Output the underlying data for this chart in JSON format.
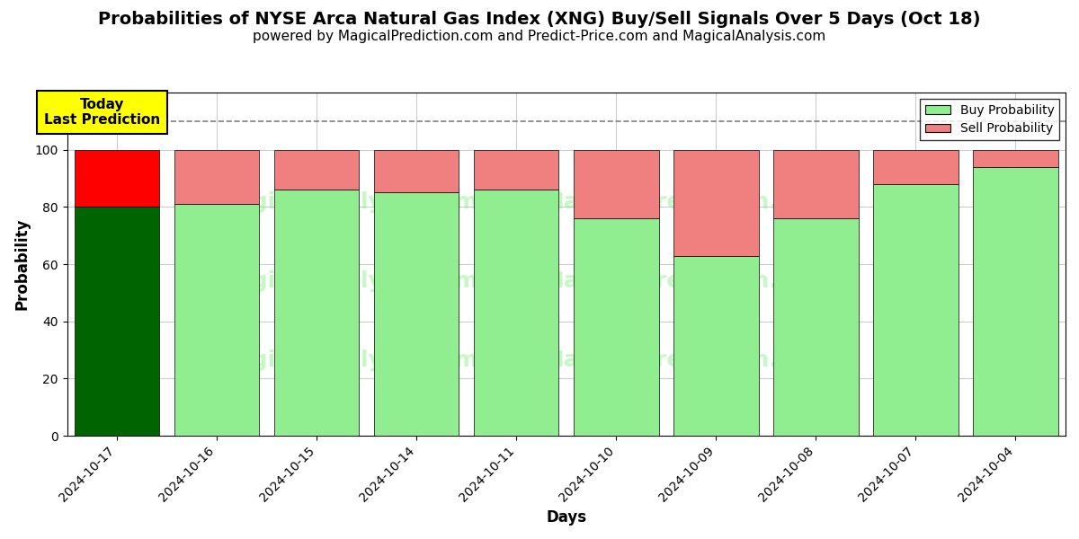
{
  "title": "Probabilities of NYSE Arca Natural Gas Index (XNG) Buy/Sell Signals Over 5 Days (Oct 18)",
  "subtitle": "powered by MagicalPrediction.com and Predict-Price.com and MagicalAnalysis.com",
  "xlabel": "Days",
  "ylabel": "Probability",
  "categories": [
    "2024-10-17",
    "2024-10-16",
    "2024-10-15",
    "2024-10-14",
    "2024-10-11",
    "2024-10-10",
    "2024-10-09",
    "2024-10-08",
    "2024-10-07",
    "2024-10-04"
  ],
  "buy_values": [
    80,
    81,
    86,
    85,
    86,
    76,
    63,
    76,
    88,
    94
  ],
  "sell_values": [
    20,
    19,
    14,
    15,
    14,
    24,
    37,
    24,
    12,
    6
  ],
  "today_buy_color": "#006400",
  "today_sell_color": "#FF0000",
  "buy_color": "#90EE90",
  "sell_color": "#F08080",
  "today_label_bg": "#FFFF00",
  "today_annotation": "Today\nLast Prediction",
  "ylim_min": 0,
  "ylim_max": 120,
  "yticks": [
    0,
    20,
    40,
    60,
    80,
    100
  ],
  "dashed_line_y": 110,
  "bar_width": 0.85,
  "background_color": "#ffffff",
  "grid_color": "#cccccc",
  "legend_buy_label": "Buy Probability",
  "legend_sell_label": "Sell Probability",
  "title_fontsize": 14,
  "subtitle_fontsize": 11,
  "axis_label_fontsize": 12,
  "tick_fontsize": 10
}
